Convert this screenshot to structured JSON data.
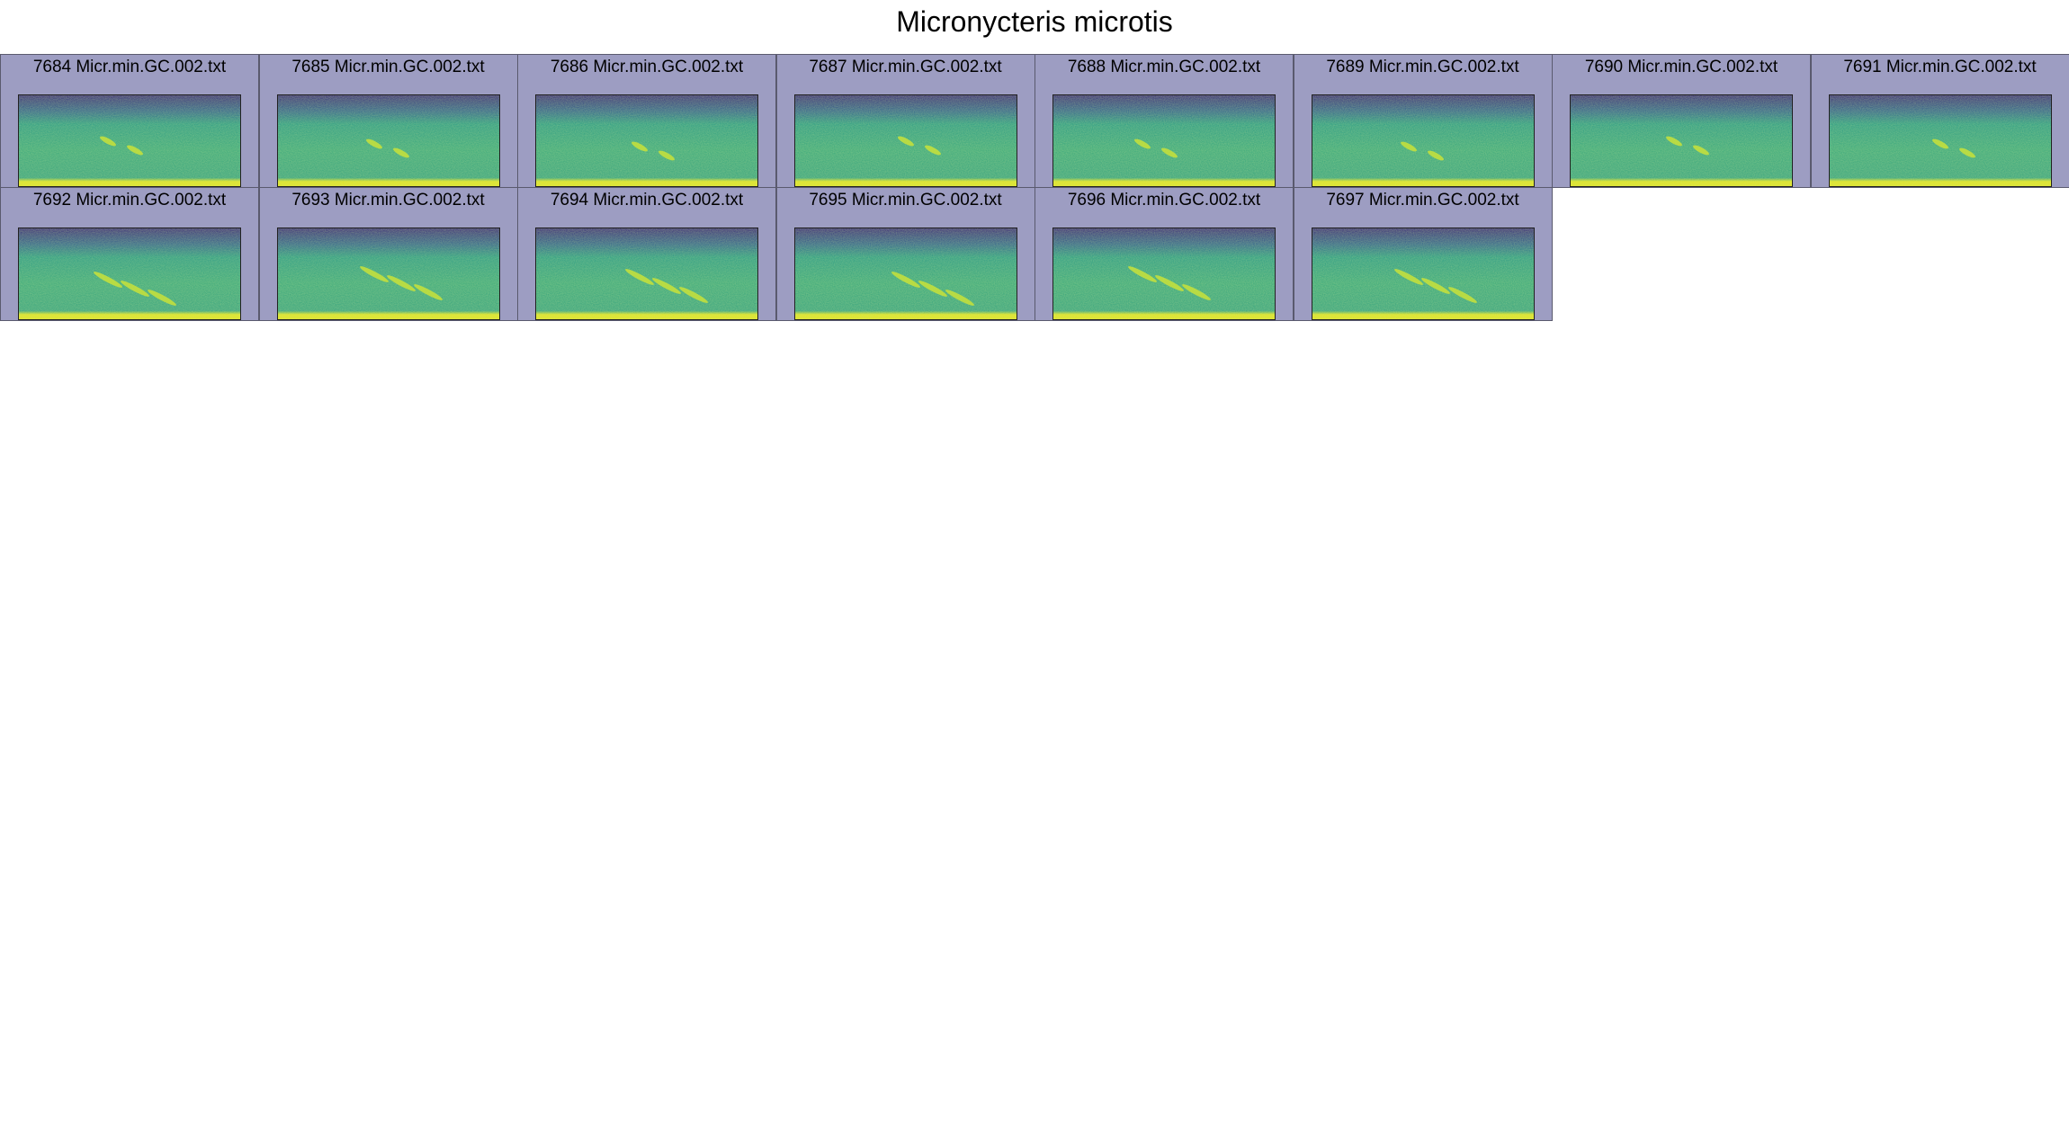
{
  "title": "Micronycteris microtis",
  "tiles": [
    "7684 Micr.min.GC.002.txt",
    "7685 Micr.min.GC.002.txt",
    "7686 Micr.min.GC.002.txt",
    "7687 Micr.min.GC.002.txt",
    "7688 Micr.min.GC.002.txt",
    "7689 Micr.min.GC.002.txt",
    "7690 Micr.min.GC.002.txt",
    "7691 Micr.min.GC.002.txt",
    "7692 Micr.min.GC.002.txt",
    "7693 Micr.min.GC.002.txt",
    "7694 Micr.min.GC.002.txt",
    "7695 Micr.min.GC.002.txt",
    "7696 Micr.min.GC.002.txt",
    "7697 Micr.min.GC.002.txt"
  ]
}
